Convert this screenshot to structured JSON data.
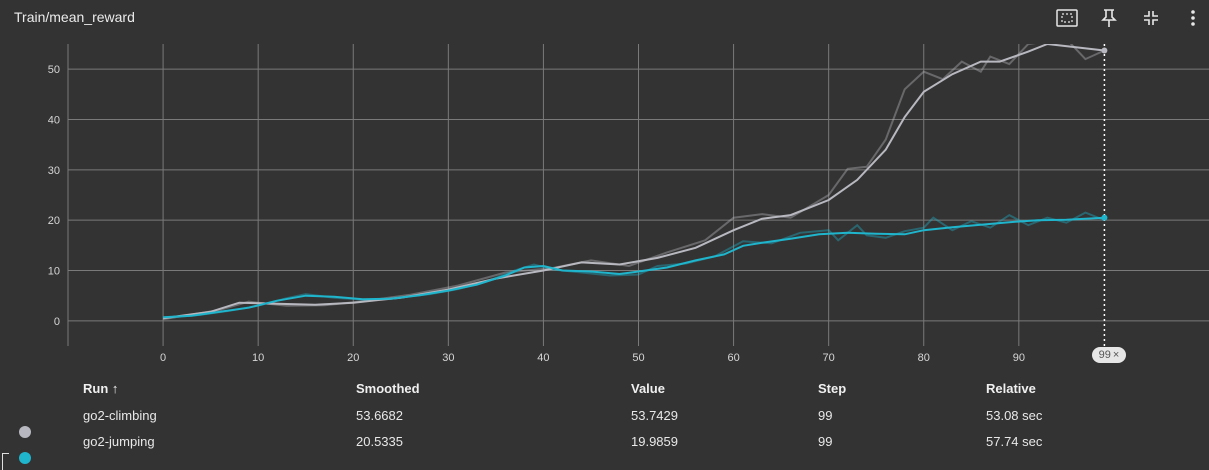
{
  "title": "Train/mean_reward",
  "toolbar": {
    "icons": [
      "fit-domain-icon",
      "pin-icon",
      "collapse-icon",
      "more-vert-icon"
    ]
  },
  "colors": {
    "background": "#333333",
    "grid": "#7a7a7a",
    "climbing": "#b8b8c0",
    "jumping": "#1fb5cc"
  },
  "hover_step_label": "99",
  "chart_data": {
    "type": "line",
    "xlabel": "",
    "ylabel": "",
    "xlim": [
      -10,
      110
    ],
    "ylim": [
      -5,
      55
    ],
    "x_ticks": [
      0,
      10,
      20,
      30,
      40,
      50,
      60,
      70,
      80,
      90
    ],
    "y_ticks": [
      0,
      10,
      20,
      30,
      40,
      50
    ],
    "grid": true,
    "hover_step": 99,
    "series": [
      {
        "name": "go2-climbing",
        "smoothed_points": [
          [
            0,
            0.5
          ],
          [
            5,
            1.8
          ],
          [
            8,
            3.6
          ],
          [
            12,
            3.4
          ],
          [
            16,
            3.2
          ],
          [
            20,
            3.6
          ],
          [
            25,
            4.6
          ],
          [
            30,
            6.2
          ],
          [
            35,
            8.4
          ],
          [
            40,
            10.0
          ],
          [
            44,
            11.6
          ],
          [
            48,
            11.2
          ],
          [
            52,
            12.5
          ],
          [
            56,
            14.5
          ],
          [
            60,
            18.0
          ],
          [
            63,
            20.3
          ],
          [
            66,
            21.0
          ],
          [
            70,
            24.0
          ],
          [
            73,
            28.0
          ],
          [
            76,
            34.0
          ],
          [
            78,
            40.5
          ],
          [
            80,
            45.5
          ],
          [
            83,
            49.0
          ],
          [
            86,
            51.5
          ],
          [
            88,
            51.5
          ],
          [
            91,
            53.5
          ],
          [
            93,
            55.0
          ],
          [
            99,
            53.7
          ]
        ],
        "raw_points": [
          [
            0,
            0.3
          ],
          [
            6,
            2.2
          ],
          [
            9,
            3.8
          ],
          [
            13,
            3.0
          ],
          [
            17,
            3.1
          ],
          [
            21,
            3.9
          ],
          [
            26,
            5.2
          ],
          [
            31,
            7.0
          ],
          [
            36,
            9.6
          ],
          [
            41,
            10.5
          ],
          [
            45,
            12.0
          ],
          [
            49,
            10.9
          ],
          [
            53,
            13.6
          ],
          [
            57,
            16.0
          ],
          [
            60,
            20.5
          ],
          [
            63,
            21.2
          ],
          [
            66,
            20.5
          ],
          [
            70,
            25.0
          ],
          [
            72,
            30.2
          ],
          [
            74,
            30.6
          ],
          [
            76,
            36.0
          ],
          [
            78,
            46.0
          ],
          [
            80,
            49.5
          ],
          [
            82,
            48.0
          ],
          [
            84,
            51.5
          ],
          [
            86,
            49.5
          ],
          [
            87,
            52.5
          ],
          [
            89,
            51.0
          ],
          [
            91,
            55.0
          ],
          [
            95,
            56.0
          ],
          [
            97,
            52.0
          ],
          [
            99,
            53.7
          ]
        ]
      },
      {
        "name": "go2-jumping",
        "smoothed_points": [
          [
            0,
            0.7
          ],
          [
            3,
            1.0
          ],
          [
            6,
            1.8
          ],
          [
            9,
            2.6
          ],
          [
            12,
            4.0
          ],
          [
            15,
            5.0
          ],
          [
            18,
            4.8
          ],
          [
            21,
            4.3
          ],
          [
            24,
            4.4
          ],
          [
            27,
            5.1
          ],
          [
            30,
            6.0
          ],
          [
            33,
            7.2
          ],
          [
            36,
            9.0
          ],
          [
            38,
            10.6
          ],
          [
            40,
            10.9
          ],
          [
            42,
            10.0
          ],
          [
            45,
            9.8
          ],
          [
            48,
            9.3
          ],
          [
            50,
            9.8
          ],
          [
            53,
            10.6
          ],
          [
            56,
            12.0
          ],
          [
            59,
            13.2
          ],
          [
            61,
            14.9
          ],
          [
            63,
            15.5
          ],
          [
            66,
            16.3
          ],
          [
            69,
            17.2
          ],
          [
            72,
            17.5
          ],
          [
            75,
            17.3
          ],
          [
            78,
            17.2
          ],
          [
            80,
            18.0
          ],
          [
            83,
            18.6
          ],
          [
            86,
            19.1
          ],
          [
            89,
            19.6
          ],
          [
            92,
            20.0
          ],
          [
            95,
            20.1
          ],
          [
            97,
            20.3
          ],
          [
            99,
            20.5
          ]
        ],
        "raw_points": [
          [
            0,
            0.5
          ],
          [
            4,
            1.2
          ],
          [
            7,
            2.0
          ],
          [
            10,
            3.0
          ],
          [
            13,
            4.5
          ],
          [
            15,
            5.3
          ],
          [
            18,
            4.6
          ],
          [
            22,
            4.1
          ],
          [
            25,
            4.7
          ],
          [
            28,
            5.3
          ],
          [
            31,
            6.3
          ],
          [
            34,
            7.8
          ],
          [
            37,
            10.0
          ],
          [
            39,
            11.2
          ],
          [
            41,
            10.2
          ],
          [
            44,
            9.6
          ],
          [
            47,
            9.0
          ],
          [
            50,
            9.2
          ],
          [
            52,
            10.9
          ],
          [
            55,
            11.4
          ],
          [
            58,
            12.8
          ],
          [
            61,
            15.8
          ],
          [
            64,
            15.4
          ],
          [
            67,
            17.5
          ],
          [
            70,
            18.0
          ],
          [
            71,
            16.0
          ],
          [
            73,
            19.0
          ],
          [
            74,
            17.0
          ],
          [
            76,
            16.5
          ],
          [
            78,
            17.8
          ],
          [
            80,
            18.5
          ],
          [
            81,
            20.5
          ],
          [
            83,
            18.0
          ],
          [
            85,
            19.8
          ],
          [
            87,
            18.5
          ],
          [
            89,
            21.0
          ],
          [
            91,
            19.0
          ],
          [
            93,
            20.5
          ],
          [
            95,
            19.5
          ],
          [
            97,
            21.5
          ],
          [
            99,
            20.0
          ]
        ]
      }
    ]
  },
  "table": {
    "headers": {
      "run": "Run ↑",
      "smoothed": "Smoothed",
      "value": "Value",
      "step": "Step",
      "relative": "Relative"
    },
    "rows": [
      {
        "run": "go2-climbing",
        "smoothed": "53.6682",
        "value": "53.7429",
        "step": "99",
        "relative": "53.08 sec",
        "color": "#b8b8c0"
      },
      {
        "run": "go2-jumping",
        "smoothed": "20.5335",
        "value": "19.9859",
        "step": "99",
        "relative": "57.74 sec",
        "color": "#1fb5cc"
      }
    ]
  }
}
